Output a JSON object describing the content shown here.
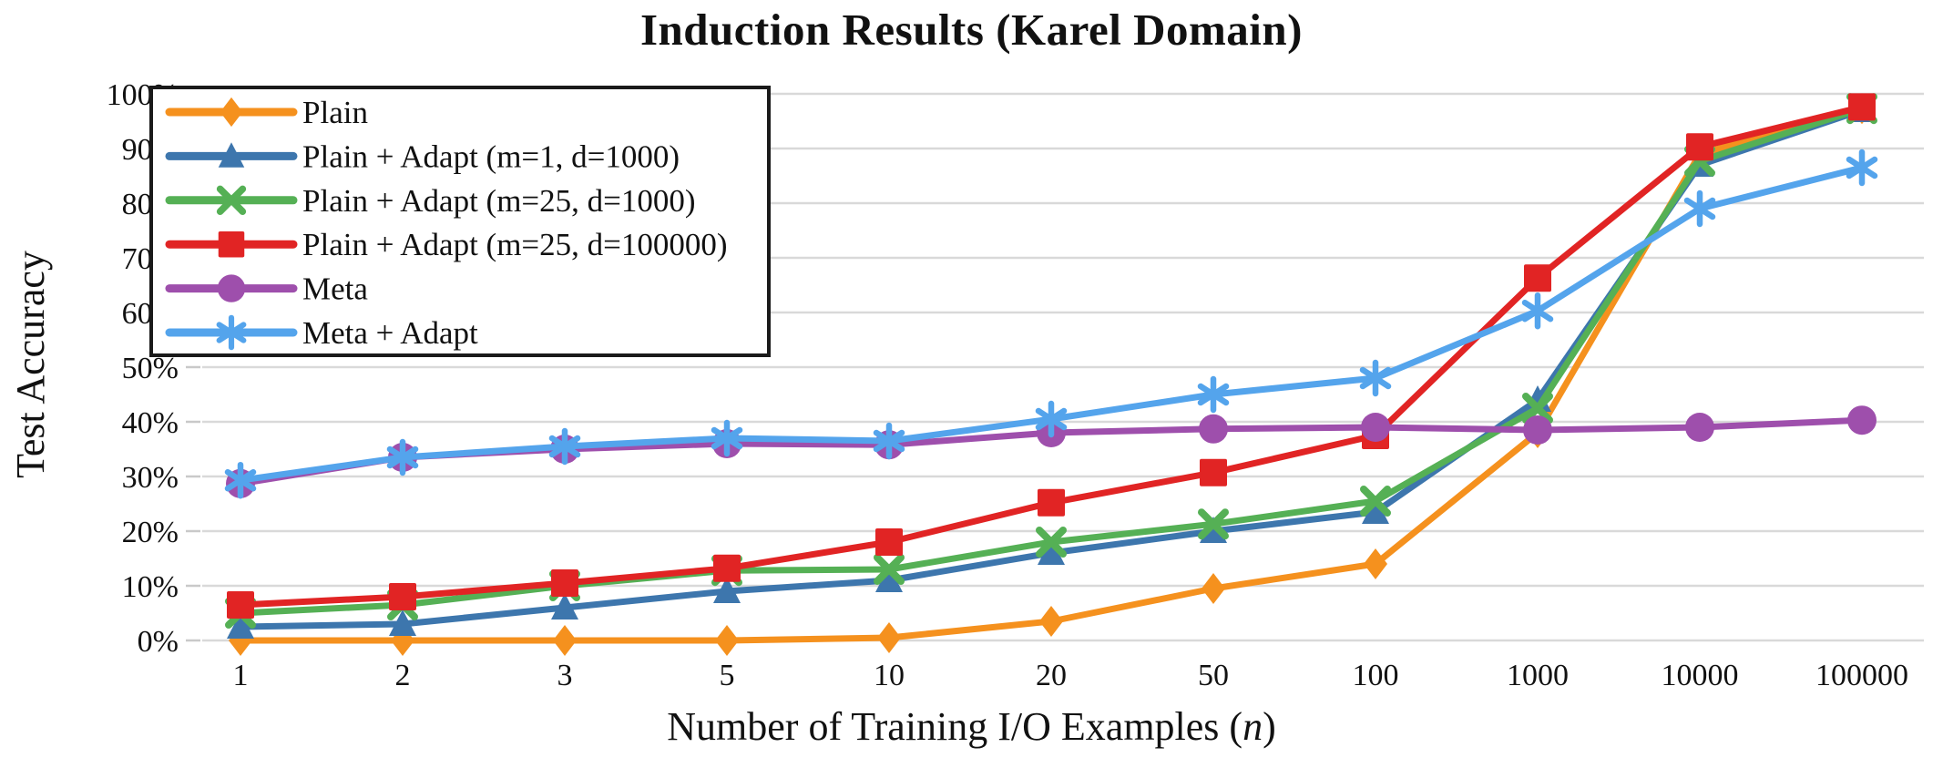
{
  "chart_data": {
    "type": "line",
    "title": "Induction Results (Karel Domain)",
    "ylabel": "Test Accuracy",
    "xlabel_prefix": "Number of Training I/O Examples (",
    "xlabel_var": "n",
    "xlabel_suffix": ")",
    "x_axis_type": "categorical",
    "categories": [
      "1",
      "2",
      "3",
      "5",
      "10",
      "20",
      "50",
      "100",
      "1000",
      "10000",
      "100000"
    ],
    "ylim": [
      0,
      100
    ],
    "y_ticks": [
      0,
      10,
      20,
      30,
      40,
      50,
      60,
      70,
      80,
      90,
      100
    ],
    "y_tick_suffix": "%",
    "grid": "horizontal",
    "gridline_color": "#D9D9D9",
    "tick_color": "#C9C9C9",
    "text_color": "#111111",
    "legend_position": "top-left",
    "series": [
      {
        "name": "Plain",
        "color": "#F5911E",
        "marker": "diamond",
        "values": [
          0,
          0,
          0,
          0,
          0.5,
          3.5,
          9.5,
          14,
          38,
          89,
          97.3
        ]
      },
      {
        "name": "Plain + Adapt (m=1, d=1000)",
        "color": "#3D76AD",
        "marker": "triangle",
        "values": [
          2.5,
          3,
          6,
          9,
          11,
          16,
          20,
          23.5,
          44,
          87,
          97
        ]
      },
      {
        "name": "Plain + Adapt (m=25, d=1000)",
        "color": "#55B055",
        "marker": "x",
        "values": [
          5,
          6.5,
          10,
          12.8,
          13,
          18,
          21.3,
          25.5,
          42.5,
          87.7,
          97.3
        ]
      },
      {
        "name": "Plain + Adapt (m=25, d=100000)",
        "color": "#E12424",
        "marker": "square",
        "values": [
          6.5,
          8,
          10.5,
          13.2,
          18,
          25.2,
          30.7,
          37.5,
          66.3,
          90.3,
          97.6
        ]
      },
      {
        "name": "Meta",
        "color": "#9E4FAC",
        "marker": "circle",
        "values": [
          28.7,
          33.5,
          35,
          36,
          35.8,
          38,
          38.7,
          39,
          38.5,
          39,
          40.3
        ]
      },
      {
        "name": "Meta + Adapt",
        "color": "#54A4EC",
        "marker": "asterisk",
        "values": [
          29.3,
          33.5,
          35.5,
          37,
          36.5,
          40.5,
          45,
          48,
          60.3,
          79,
          86.5
        ]
      }
    ]
  }
}
